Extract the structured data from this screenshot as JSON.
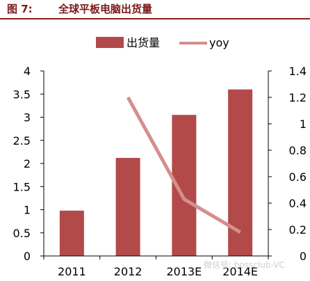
{
  "header": {
    "figure_label": "图 7:",
    "title": "全球平板电脑出货量"
  },
  "watermark": "微信号: bossclub-VC",
  "colors": {
    "bar": "#b34a4a",
    "line": "#d48f8c",
    "title": "#7a1a1a",
    "rule": "#8b1c1c",
    "axis": "#000000",
    "text": "#000000"
  },
  "chart_data": {
    "type": "bar",
    "title": "全球平板电脑出货量",
    "categories": [
      "2011",
      "2012",
      "2013E",
      "2014E"
    ],
    "series": [
      {
        "name": "出货量",
        "type": "bar",
        "axis": "left",
        "values": [
          0.98,
          2.12,
          3.05,
          3.6
        ]
      },
      {
        "name": "yoy",
        "type": "line",
        "axis": "right",
        "values": [
          null,
          1.2,
          0.43,
          0.18
        ]
      }
    ],
    "ylim_left": [
      0,
      4
    ],
    "yticks_left": [
      "0",
      "0.5",
      "1",
      "1.5",
      "2",
      "2.5",
      "3",
      "3.5",
      "4"
    ],
    "ylim_right": [
      0,
      1.4
    ],
    "yticks_right": [
      "0",
      "0.2",
      "0.4",
      "0.6",
      "0.8",
      "1",
      "1.2",
      "1.4"
    ],
    "xlabel": "",
    "ylabel": "",
    "grid": false,
    "legend_position": "top"
  }
}
